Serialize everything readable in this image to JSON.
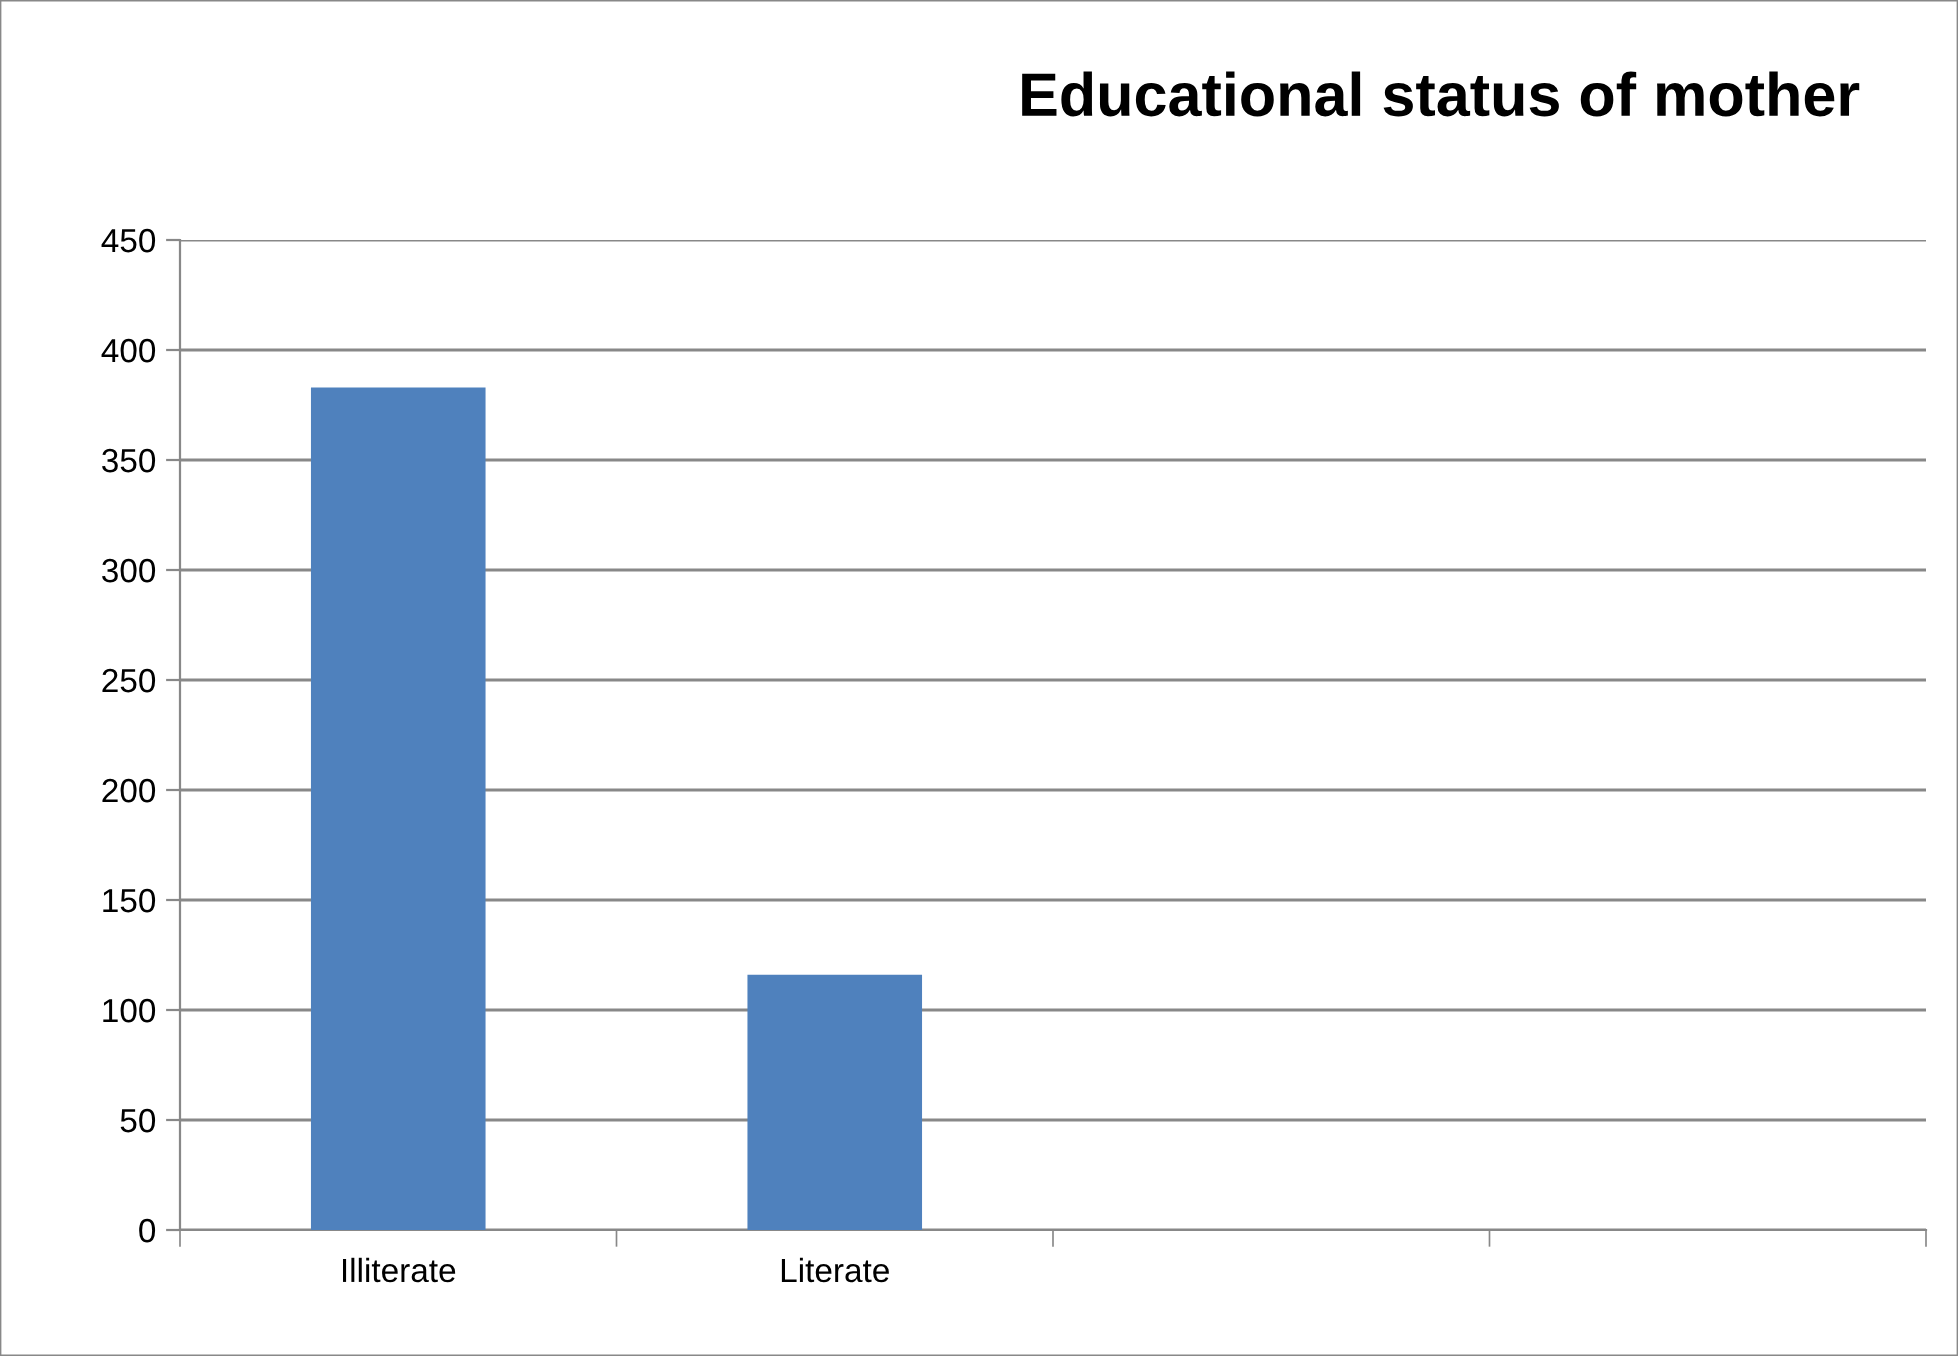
{
  "chart_data": {
    "type": "bar",
    "title": "Educational status of mother",
    "categories": [
      "Illiterate",
      "Literate",
      null,
      null
    ],
    "values": [
      383,
      116,
      null,
      null
    ],
    "color": "#4f81bd",
    "ylim": [
      0,
      450
    ],
    "yticks": [
      0,
      50,
      100,
      150,
      200,
      250,
      300,
      350,
      400,
      450
    ],
    "grid": "y",
    "legend": false
  }
}
